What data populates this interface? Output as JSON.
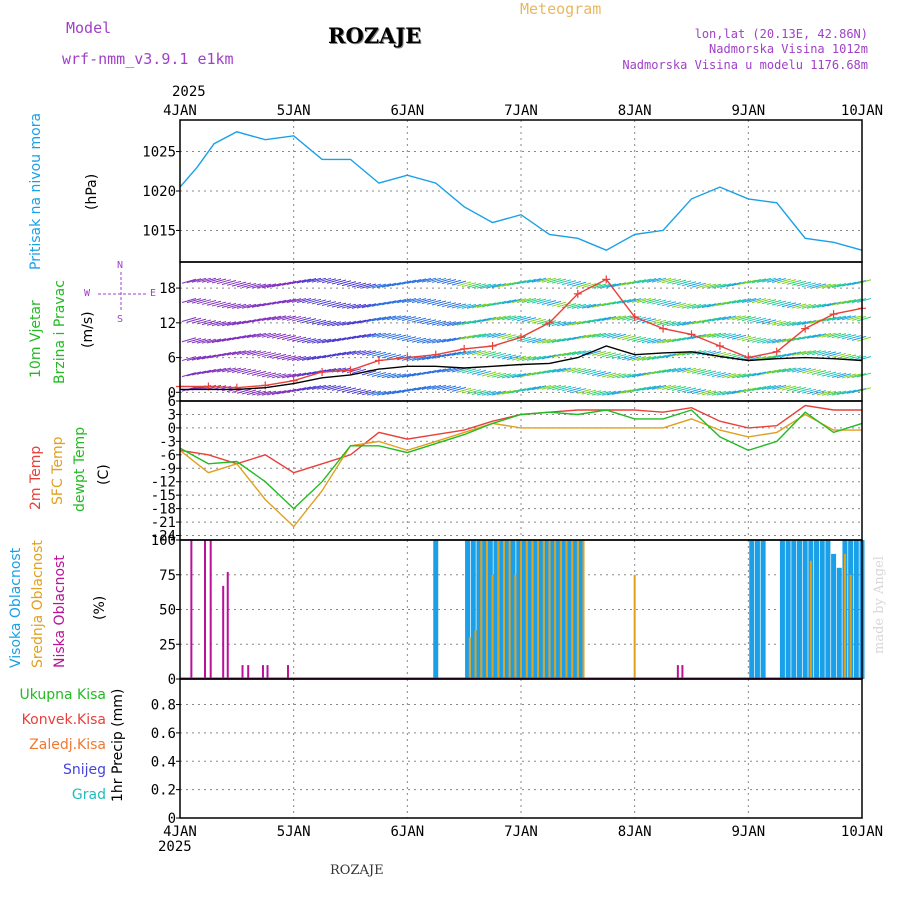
{
  "header": {
    "model_label": "Model",
    "model_name": "wrf-nmm_v3.9.1 e1km",
    "station": "ROZAJE",
    "meteogram": "Meteogram",
    "coords": "lon,lat (20.13E, 42.86N)",
    "elevation": "Nadmorska Visina 1012m",
    "model_elevation": "Nadmorska Visina u modelu 1176.68m",
    "footer_station": "ROZAJE",
    "credit": "made by Angel"
  },
  "time_axis": {
    "year": "2025",
    "labels": [
      "4JAN",
      "5JAN",
      "6JAN",
      "7JAN",
      "8JAN",
      "9JAN",
      "10JAN"
    ]
  },
  "colors": {
    "pressure": "#1aa0e8",
    "temp_2m": "#e8403a",
    "temp_sfc": "#e0a020",
    "dewpoint": "#22bb22",
    "cloud_high": "#1aa0e8",
    "cloud_mid": "#e0a020",
    "cloud_low": "#bb1199",
    "label_purple": "#a040c8",
    "meteogram": "#e8b860"
  },
  "panels": {
    "pressure": {
      "label_line1": "Pritisak na nivou mora",
      "unit": "(hPa)"
    },
    "wind": {
      "label_line1": "10m Vjetar",
      "label_line2": "Brzina i Pravac",
      "unit": "(m/s)",
      "compass_n": "N",
      "compass_s": "S",
      "compass_w": "W",
      "compass_e": "E"
    },
    "temp": {
      "label_line1": "2m Temp",
      "label_line2": "SFC Temp",
      "label_line3": "dewpt Temp",
      "unit": "(C)"
    },
    "cloud": {
      "label_line1": "Visoka Oblacnost",
      "label_line2": "Srednja Oblacnost",
      "label_line3": "Niska Oblacnost",
      "unit": "(%)"
    },
    "precip": {
      "legend": [
        "Ukupna Kisa",
        "Konvek.Kisa",
        "Zaledj.Kisa",
        "Snijeg",
        "Grad"
      ],
      "legend_colors": [
        "#22bb22",
        "#e8403a",
        "#f07830",
        "#4444dd",
        "#22bbbb"
      ],
      "unit": "1hr Precip (mm)"
    }
  },
  "chart_data": [
    {
      "type": "line",
      "title": "",
      "ylabel": "(hPa)",
      "ylim": [
        1011,
        1029
      ],
      "yticks": [
        "1025",
        "1020",
        "1015"
      ],
      "ytick_values": [
        1025,
        1020,
        1015
      ],
      "x": [
        0,
        0.15,
        0.3,
        0.5,
        0.75,
        1.0,
        1.25,
        1.5,
        1.75,
        2.0,
        2.25,
        2.5,
        2.75,
        3.0,
        3.25,
        3.5,
        3.75,
        4.0,
        4.25,
        4.5,
        4.75,
        5.0,
        5.25,
        5.5,
        5.75,
        6.0
      ],
      "series": [
        {
          "values": [
            1020.5,
            1023,
            1026,
            1027.5,
            1026.5,
            1027,
            1024,
            1024,
            1021,
            1022,
            1021,
            1018,
            1016,
            1017,
            1014.5,
            1014,
            1012.5,
            1014.5,
            1015,
            1019,
            1020.5,
            1019,
            1018.5,
            1014,
            1013.5,
            1012.5
          ]
        }
      ]
    },
    {
      "type": "line",
      "title": "",
      "ylabel": "(m/s)",
      "ylim": [
        -1.5,
        22.5
      ],
      "yticks": [
        "18",
        "12",
        "6",
        "0"
      ],
      "ytick_values": [
        18,
        12,
        6,
        0
      ],
      "x": [
        0,
        0.25,
        0.5,
        0.75,
        1.0,
        1.25,
        1.5,
        1.75,
        2.0,
        2.25,
        2.5,
        2.75,
        3.0,
        3.25,
        3.5,
        3.75,
        4.0,
        4.25,
        4.5,
        4.75,
        5.0,
        5.25,
        5.5,
        5.75,
        6.0
      ],
      "series": [
        {
          "values": [
            1.0,
            1.0,
            0.8,
            1.2,
            2.0,
            3.5,
            3.8,
            5.5,
            6.0,
            6.5,
            7.5,
            8.0,
            9.5,
            12.0,
            17.0,
            19.5,
            13.0,
            11.0,
            10.0,
            8.0,
            6.0,
            7.0,
            11.0,
            13.5,
            14.5
          ]
        },
        {
          "values": [
            0.5,
            0.5,
            0.5,
            0.8,
            1.5,
            2.5,
            3.0,
            4.0,
            4.5,
            4.5,
            4.2,
            4.5,
            4.8,
            5.0,
            6.0,
            8.0,
            6.5,
            6.8,
            7.0,
            6.2,
            5.5,
            5.8,
            6.0,
            5.8,
            5.5
          ]
        }
      ]
    },
    {
      "type": "line",
      "title": "",
      "ylabel": "(C)",
      "ylim": [
        -25,
        6
      ],
      "yticks": [
        "6",
        "3",
        "0",
        "-3",
        "-6",
        "-9",
        "-12",
        "-15",
        "-18",
        "-21",
        "-24"
      ],
      "ytick_values": [
        6,
        3,
        0,
        -3,
        -6,
        -9,
        -12,
        -15,
        -18,
        -21,
        -24
      ],
      "x": [
        0,
        0.25,
        0.5,
        0.75,
        1.0,
        1.25,
        1.5,
        1.75,
        2.0,
        2.25,
        2.5,
        2.75,
        3.0,
        3.25,
        3.5,
        3.75,
        4.0,
        4.25,
        4.5,
        4.75,
        5.0,
        5.25,
        5.5,
        5.75,
        6.0
      ],
      "series": [
        {
          "values": [
            -5,
            -6,
            -8,
            -6,
            -10,
            -8,
            -6,
            -1,
            -2.5,
            -1.5,
            -0.5,
            1.5,
            3,
            3.5,
            4,
            4,
            4,
            3.5,
            4.5,
            1.5,
            0,
            0.5,
            5,
            4,
            4
          ]
        },
        {
          "values": [
            -5,
            -10,
            -8,
            -16,
            -22,
            -14,
            -4,
            -3,
            -5,
            -3,
            -1,
            1,
            0,
            0,
            0,
            0,
            0,
            0,
            2,
            -0.5,
            -2,
            -1,
            3,
            -0.5,
            -0.5
          ]
        },
        {
          "values": [
            -4.5,
            -8,
            -7.5,
            -12,
            -18,
            -12,
            -4,
            -4,
            -5.5,
            -3.5,
            -1.5,
            1,
            3,
            3.5,
            3,
            4,
            2,
            2,
            4,
            -2,
            -5,
            -3,
            3.5,
            -1,
            1
          ]
        }
      ]
    },
    {
      "type": "bar",
      "title": "",
      "ylabel": "(%)",
      "ylim": [
        0,
        100
      ],
      "yticks": [
        "100",
        "75",
        "50",
        "25",
        "0"
      ],
      "ytick_values": [
        100,
        75,
        50,
        25,
        0
      ],
      "series": [
        {
          "x": [
            2.25,
            2.53,
            2.58,
            2.63,
            2.68,
            2.73,
            2.78,
            2.83,
            2.88,
            2.93,
            2.98,
            3.03,
            3.08,
            3.13,
            3.18,
            3.23,
            3.28,
            3.33,
            3.38,
            3.43,
            3.48,
            3.53,
            5.03,
            5.08,
            5.13,
            5.3,
            5.35,
            5.4,
            5.45,
            5.5,
            5.55,
            5.6,
            5.65,
            5.7,
            5.75,
            5.8,
            5.85,
            5.9,
            5.95,
            6.0
          ],
          "values": [
            100,
            100,
            100,
            100,
            100,
            100,
            100,
            100,
            100,
            100,
            100,
            100,
            100,
            100,
            100,
            100,
            100,
            100,
            100,
            100,
            100,
            100,
            100,
            100,
            100,
            100,
            100,
            100,
            100,
            100,
            100,
            100,
            100,
            100,
            90,
            80,
            100,
            100,
            100,
            100
          ]
        },
        {
          "x": [
            2.55,
            2.6,
            2.65,
            2.7,
            2.75,
            2.8,
            2.85,
            2.9,
            2.95,
            3.0,
            3.05,
            3.1,
            3.15,
            3.2,
            3.25,
            3.3,
            3.35,
            3.4,
            3.45,
            3.5,
            3.55,
            4.0,
            5.55,
            5.85,
            5.9
          ],
          "values": [
            30,
            35,
            100,
            100,
            75,
            100,
            100,
            100,
            75,
            100,
            100,
            100,
            100,
            100,
            100,
            100,
            100,
            100,
            100,
            100,
            100,
            75,
            85,
            90,
            75
          ]
        },
        {
          "x": [
            0.1,
            0.22,
            0.27,
            0.38,
            0.42,
            0.55,
            0.6,
            0.73,
            0.77,
            0.95,
            4.38,
            4.42
          ],
          "values": [
            100,
            100,
            100,
            67,
            77,
            10,
            10,
            10,
            10,
            10,
            10,
            10
          ]
        }
      ]
    },
    {
      "type": "bar",
      "title": "",
      "ylabel": "1hr Precip (mm)",
      "ylim": [
        0,
        0.98
      ],
      "yticks": [
        "0.8",
        "0.6",
        "0.4",
        "0.2",
        "0"
      ],
      "ytick_values": [
        0.8,
        0.6,
        0.4,
        0.2,
        0
      ],
      "series": []
    }
  ]
}
